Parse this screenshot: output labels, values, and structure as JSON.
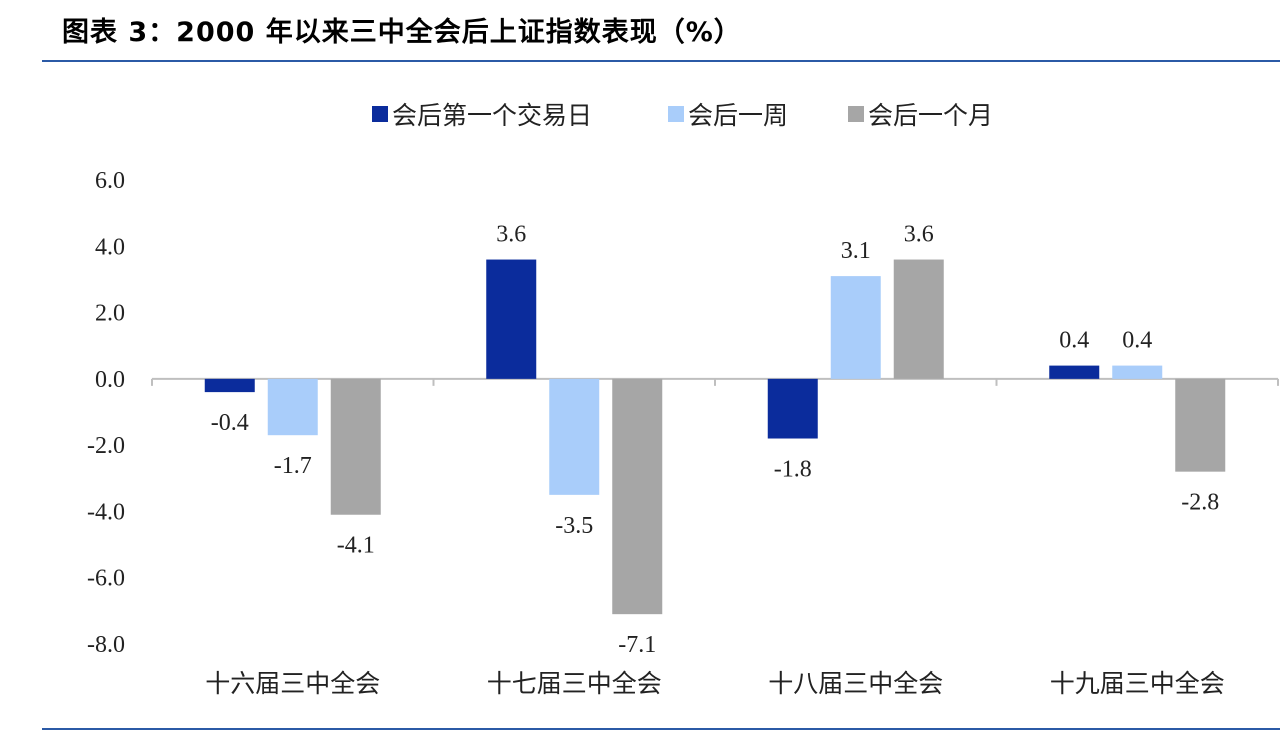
{
  "figure_title": "图表 3：2000 年以来三中全会后上证指数表现（%）",
  "colors": {
    "rule": "#2b5aa6",
    "axis": "#bfbfbf",
    "series": [
      "#0b2c9c",
      "#a9cdfa",
      "#a6a6a6"
    ]
  },
  "chart_data": {
    "type": "bar",
    "title": "图表 3：2000 年以来三中全会后上证指数表现（%）",
    "categories": [
      "十六届三中全会",
      "十七届三中全会",
      "十八届三中全会",
      "十九届三中全会"
    ],
    "series": [
      {
        "name": "会后第一个交易日",
        "values": [
          -0.4,
          3.6,
          -1.8,
          0.4
        ]
      },
      {
        "name": "会后一周",
        "values": [
          -1.7,
          -3.5,
          3.1,
          0.4
        ]
      },
      {
        "name": "会后一个月",
        "values": [
          -4.1,
          -7.1,
          3.6,
          -2.8
        ]
      }
    ],
    "data_labels": [
      [
        "-0.4",
        "3.6",
        "-1.8",
        "0.4"
      ],
      [
        "-1.7",
        "-3.5",
        "3.1",
        "0.4"
      ],
      [
        "-4.1",
        "-7.1",
        "3.6",
        "-2.8"
      ]
    ],
    "ylim": [
      -8,
      6
    ],
    "yticks": [
      "6.0",
      "4.0",
      "2.0",
      "0.0",
      "-2.0",
      "-4.0",
      "-6.0",
      "-8.0"
    ],
    "ytick_values": [
      6,
      4,
      2,
      0,
      -2,
      -4,
      -6,
      -8
    ],
    "legend_position": "top",
    "grid": false
  }
}
